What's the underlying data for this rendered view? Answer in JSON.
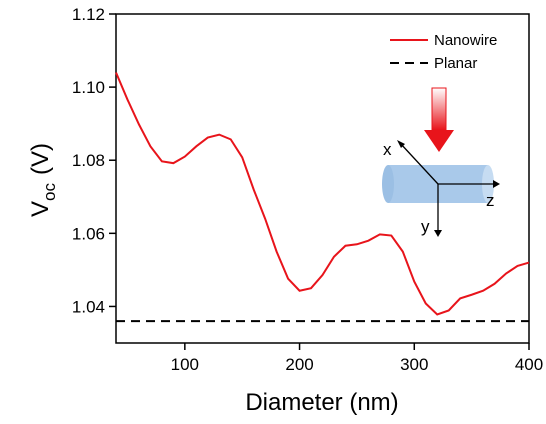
{
  "chart_data": {
    "type": "line",
    "xlabel": "Diameter (nm)",
    "ylabel": [
      "V",
      "oc",
      "(V)"
    ],
    "xlim": [
      40,
      400
    ],
    "xticks": [
      100,
      200,
      300,
      400
    ],
    "ylim": [
      1.03,
      1.12
    ],
    "yticks": [
      1.04,
      1.06,
      1.08,
      {
        "value": 1.1,
        "label": "1.10"
      },
      1.12
    ],
    "legend": "upper right",
    "x": [
      40,
      50,
      60,
      70,
      80,
      90,
      100,
      110,
      120,
      130,
      140,
      150,
      160,
      170,
      180,
      190,
      200,
      210,
      220,
      230,
      240,
      250,
      260,
      270,
      280,
      290,
      300,
      310,
      320,
      330,
      340,
      350,
      360,
      370,
      380,
      390,
      400
    ],
    "series": [
      {
        "name": "Nanowire",
        "color": "#e8141b",
        "dash": false,
        "x": [
          40,
          50,
          60,
          70,
          80,
          90,
          100,
          110,
          120,
          130,
          140,
          150,
          160,
          170,
          180,
          190,
          200,
          210,
          220,
          230,
          240,
          250,
          260,
          270,
          280,
          290,
          300,
          310,
          320,
          330,
          340,
          350,
          360,
          370,
          380,
          390,
          400
        ],
        "values": [
          1.104,
          1.0966,
          1.0898,
          1.0838,
          1.0797,
          1.0792,
          1.081,
          1.0838,
          1.0862,
          1.087,
          1.0857,
          1.0808,
          1.072,
          1.064,
          1.055,
          1.0476,
          1.0443,
          1.045,
          1.0486,
          1.0536,
          1.0566,
          1.057,
          1.058,
          1.0597,
          1.0594,
          1.055,
          1.0468,
          1.0408,
          1.0378,
          1.0389,
          1.0422,
          1.0432,
          1.0443,
          1.0462,
          1.049,
          1.0511,
          1.052
        ]
      },
      {
        "name": "Planar",
        "color": "#000000",
        "dash": true,
        "x": [
          40,
          400
        ],
        "values": [
          1.036,
          1.036
        ]
      }
    ],
    "inset": {
      "labels": [
        "x",
        "y",
        "z"
      ]
    }
  }
}
